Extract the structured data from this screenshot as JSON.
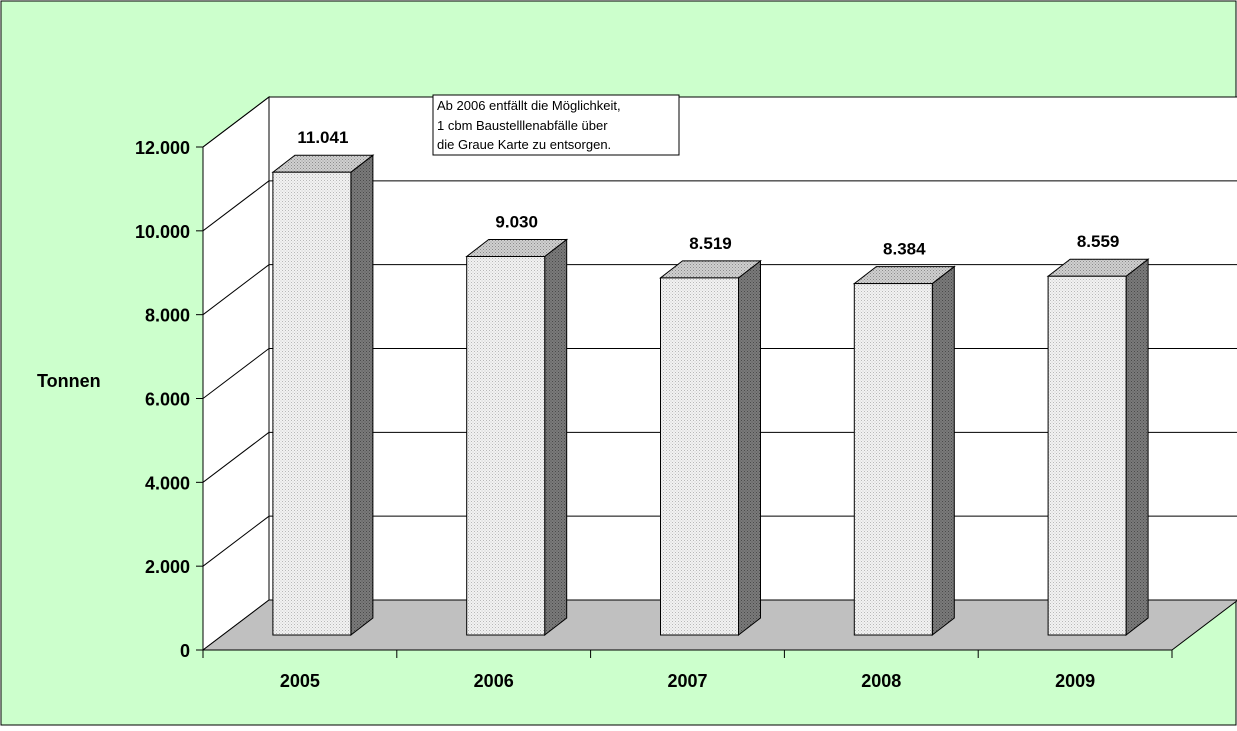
{
  "chart_data": {
    "type": "bar",
    "categories": [
      "2005",
      "2006",
      "2007",
      "2008",
      "2009"
    ],
    "values": [
      11041,
      9030,
      8519,
      8384,
      8559
    ],
    "value_labels": [
      "11.041",
      "9.030",
      "8.519",
      "8.384",
      "8.559"
    ],
    "ylabel": "Tonnen",
    "ylim": [
      0,
      12000
    ],
    "yticks": [
      0,
      2000,
      4000,
      6000,
      8000,
      10000,
      12000
    ],
    "ytick_labels": [
      "0",
      "2.000",
      "4.000",
      "6.000",
      "8.000",
      "10.000",
      "12.000"
    ],
    "grid": true,
    "three_d": true,
    "annotation": {
      "lines": [
        "Ab 2006 entfällt die Möglichkeit,",
        "1 cbm Baustelllenabfälle über",
        "die Graue Karte zu entsorgen."
      ]
    },
    "colors": {
      "background": "#ccffcc",
      "wall": "#ffffff",
      "floor": "#c0c0c0",
      "bar_front": "#eeeeee",
      "bar_top": "#c8c8c8",
      "bar_side": "#777777"
    }
  }
}
